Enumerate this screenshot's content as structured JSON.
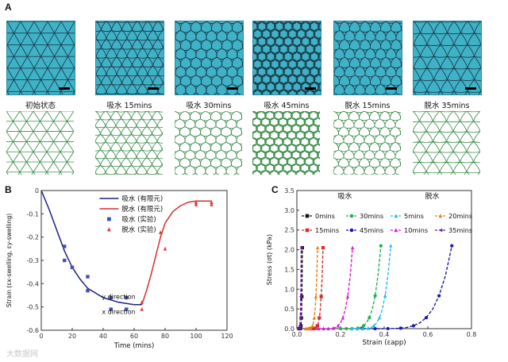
{
  "panel_a": {
    "letter": "A",
    "captions": [
      "初始状态",
      "吸水 15mins",
      "吸水 30mins",
      "吸水 45mins",
      "脱水 15mins",
      "脱水 35mins"
    ],
    "photo_color": "#3fb2c8",
    "sim_color": "#3f8f4d"
  },
  "panel_b": {
    "letter": "B"
  },
  "panel_c": {
    "letter": "C"
  },
  "watermark": "大数据网",
  "chart_data": [
    {
      "id": "B",
      "type": "line+scatter",
      "xlabel": "Time (mins)",
      "ylabel": "Strain (εx-swelling, εy-swelling)",
      "xlim": [
        0,
        120
      ],
      "ylim": [
        -0.6,
        0
      ],
      "xticks": [
        0,
        20,
        40,
        60,
        80,
        100,
        120
      ],
      "yticks": [
        0,
        -0.1,
        -0.2,
        -0.3,
        -0.4,
        -0.5,
        -0.6
      ],
      "annotations": [
        {
          "text": "y direction",
          "x": 50,
          "y": -0.465
        },
        {
          "text": "x direction",
          "x": 50,
          "y": -0.53
        }
      ],
      "series": [
        {
          "name": "吸水 (有限元)",
          "kind": "line",
          "color": "#1a237e",
          "x": [
            0,
            5,
            10,
            15,
            20,
            25,
            30,
            40,
            50,
            60,
            65
          ],
          "y": [
            0,
            -0.08,
            -0.17,
            -0.26,
            -0.33,
            -0.38,
            -0.42,
            -0.46,
            -0.48,
            -0.49,
            -0.49
          ]
        },
        {
          "name": "脱水 (有限元)",
          "kind": "line",
          "color": "#d32f2f",
          "x": [
            65,
            68,
            71,
            74,
            77,
            80,
            85,
            90,
            95,
            100,
            110
          ],
          "y": [
            -0.49,
            -0.43,
            -0.36,
            -0.28,
            -0.2,
            -0.14,
            -0.09,
            -0.065,
            -0.05,
            -0.045,
            -0.045
          ]
        },
        {
          "name": "吸水 (实验)",
          "kind": "scatter",
          "marker": "square",
          "color": "#3f51b5",
          "x": [
            15,
            15,
            20,
            30,
            30,
            45,
            45,
            55,
            55
          ],
          "y": [
            -0.24,
            -0.3,
            -0.33,
            -0.37,
            -0.43,
            -0.46,
            -0.51,
            -0.46,
            -0.51
          ]
        },
        {
          "name": "脱水 (实验)",
          "kind": "scatter",
          "marker": "triangle",
          "color": "#e53935",
          "x": [
            65,
            65,
            77,
            80,
            100,
            100,
            110,
            110
          ],
          "y": [
            -0.48,
            -0.51,
            -0.18,
            -0.25,
            -0.05,
            -0.06,
            -0.05,
            -0.06
          ]
        }
      ]
    },
    {
      "id": "C",
      "type": "line+scatter",
      "xlabel": "Strain (εapp)",
      "ylabel": "Stress (σt) (kPa)",
      "xlim": [
        0,
        0.8
      ],
      "ylim": [
        0,
        3.5
      ],
      "xticks": [
        0.0,
        0.2,
        0.4,
        0.6,
        0.8
      ],
      "yticks": [
        0.0,
        0.5,
        1.0,
        1.5,
        2.0,
        2.5,
        3.0,
        3.5
      ],
      "group_labels": [
        {
          "text": "吸水",
          "x": 0.22,
          "y": 3.3
        },
        {
          "text": "脱水",
          "x": 0.62,
          "y": 3.3
        }
      ],
      "series": [
        {
          "name": "0mins",
          "marker": "square",
          "color": "#111111",
          "x0": 0.01,
          "x1": 0.025,
          "ymax": 2.05
        },
        {
          "name": "15mins",
          "marker": "square",
          "color": "#d32f2f",
          "x0": 0.06,
          "x1": 0.12,
          "ymax": 2.05
        },
        {
          "name": "30mins",
          "marker": "circle",
          "color": "#22b14c",
          "x0": 0.2,
          "x1": 0.385,
          "ymax": 2.1
        },
        {
          "name": "45mins",
          "marker": "circle",
          "color": "#1a1aa6",
          "x0": 0.3,
          "x1": 0.71,
          "ymax": 2.1
        },
        {
          "name": "5mins",
          "marker": "triangle-up",
          "color": "#29b6f6",
          "x0": 0.25,
          "x1": 0.43,
          "ymax": 2.1
        },
        {
          "name": "10mins",
          "marker": "triangle-up",
          "color": "#d81bd8",
          "x0": 0.1,
          "x1": 0.255,
          "ymax": 2.05
        },
        {
          "name": "20mins",
          "marker": "triangle-up",
          "color": "#ef7d1a",
          "x0": 0.04,
          "x1": 0.095,
          "ymax": 2.05
        },
        {
          "name": "35mins",
          "marker": "triangle-left",
          "color": "#6a1b9a",
          "x0": 0.005,
          "x1": 0.02,
          "ymax": 2.05
        }
      ]
    }
  ]
}
